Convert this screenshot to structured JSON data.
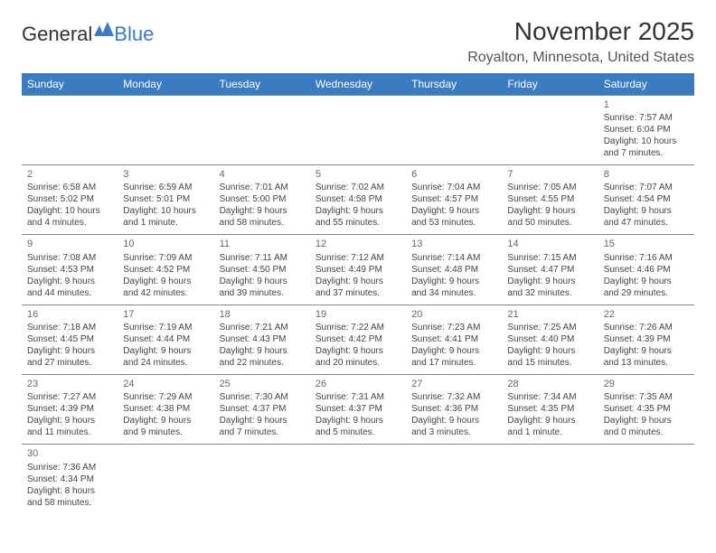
{
  "logo": {
    "text1": "General",
    "text2": "Blue",
    "icon_color": "#3b7bbf"
  },
  "title": "November 2025",
  "location": "Royalton, Minnesota, United States",
  "header_bg": "#3b7bbf",
  "header_fg": "#ffffff",
  "row_separator_color": "#3b7bbf",
  "day_separator_color": "#888888",
  "font_family": "Arial",
  "title_fontsize": 28,
  "location_fontsize": 16,
  "header_fontsize": 12,
  "body_fontsize": 10,
  "columns": [
    "Sunday",
    "Monday",
    "Tuesday",
    "Wednesday",
    "Thursday",
    "Friday",
    "Saturday"
  ],
  "weeks": [
    [
      null,
      null,
      null,
      null,
      null,
      null,
      {
        "n": "1",
        "sr": "Sunrise: 7:57 AM",
        "ss": "Sunset: 6:04 PM",
        "dl": "Daylight: 10 hours and 7 minutes."
      }
    ],
    [
      {
        "n": "2",
        "sr": "Sunrise: 6:58 AM",
        "ss": "Sunset: 5:02 PM",
        "dl": "Daylight: 10 hours and 4 minutes."
      },
      {
        "n": "3",
        "sr": "Sunrise: 6:59 AM",
        "ss": "Sunset: 5:01 PM",
        "dl": "Daylight: 10 hours and 1 minute."
      },
      {
        "n": "4",
        "sr": "Sunrise: 7:01 AM",
        "ss": "Sunset: 5:00 PM",
        "dl": "Daylight: 9 hours and 58 minutes."
      },
      {
        "n": "5",
        "sr": "Sunrise: 7:02 AM",
        "ss": "Sunset: 4:58 PM",
        "dl": "Daylight: 9 hours and 55 minutes."
      },
      {
        "n": "6",
        "sr": "Sunrise: 7:04 AM",
        "ss": "Sunset: 4:57 PM",
        "dl": "Daylight: 9 hours and 53 minutes."
      },
      {
        "n": "7",
        "sr": "Sunrise: 7:05 AM",
        "ss": "Sunset: 4:55 PM",
        "dl": "Daylight: 9 hours and 50 minutes."
      },
      {
        "n": "8",
        "sr": "Sunrise: 7:07 AM",
        "ss": "Sunset: 4:54 PM",
        "dl": "Daylight: 9 hours and 47 minutes."
      }
    ],
    [
      {
        "n": "9",
        "sr": "Sunrise: 7:08 AM",
        "ss": "Sunset: 4:53 PM",
        "dl": "Daylight: 9 hours and 44 minutes."
      },
      {
        "n": "10",
        "sr": "Sunrise: 7:09 AM",
        "ss": "Sunset: 4:52 PM",
        "dl": "Daylight: 9 hours and 42 minutes."
      },
      {
        "n": "11",
        "sr": "Sunrise: 7:11 AM",
        "ss": "Sunset: 4:50 PM",
        "dl": "Daylight: 9 hours and 39 minutes."
      },
      {
        "n": "12",
        "sr": "Sunrise: 7:12 AM",
        "ss": "Sunset: 4:49 PM",
        "dl": "Daylight: 9 hours and 37 minutes."
      },
      {
        "n": "13",
        "sr": "Sunrise: 7:14 AM",
        "ss": "Sunset: 4:48 PM",
        "dl": "Daylight: 9 hours and 34 minutes."
      },
      {
        "n": "14",
        "sr": "Sunrise: 7:15 AM",
        "ss": "Sunset: 4:47 PM",
        "dl": "Daylight: 9 hours and 32 minutes."
      },
      {
        "n": "15",
        "sr": "Sunrise: 7:16 AM",
        "ss": "Sunset: 4:46 PM",
        "dl": "Daylight: 9 hours and 29 minutes."
      }
    ],
    [
      {
        "n": "16",
        "sr": "Sunrise: 7:18 AM",
        "ss": "Sunset: 4:45 PM",
        "dl": "Daylight: 9 hours and 27 minutes."
      },
      {
        "n": "17",
        "sr": "Sunrise: 7:19 AM",
        "ss": "Sunset: 4:44 PM",
        "dl": "Daylight: 9 hours and 24 minutes."
      },
      {
        "n": "18",
        "sr": "Sunrise: 7:21 AM",
        "ss": "Sunset: 4:43 PM",
        "dl": "Daylight: 9 hours and 22 minutes."
      },
      {
        "n": "19",
        "sr": "Sunrise: 7:22 AM",
        "ss": "Sunset: 4:42 PM",
        "dl": "Daylight: 9 hours and 20 minutes."
      },
      {
        "n": "20",
        "sr": "Sunrise: 7:23 AM",
        "ss": "Sunset: 4:41 PM",
        "dl": "Daylight: 9 hours and 17 minutes."
      },
      {
        "n": "21",
        "sr": "Sunrise: 7:25 AM",
        "ss": "Sunset: 4:40 PM",
        "dl": "Daylight: 9 hours and 15 minutes."
      },
      {
        "n": "22",
        "sr": "Sunrise: 7:26 AM",
        "ss": "Sunset: 4:39 PM",
        "dl": "Daylight: 9 hours and 13 minutes."
      }
    ],
    [
      {
        "n": "23",
        "sr": "Sunrise: 7:27 AM",
        "ss": "Sunset: 4:39 PM",
        "dl": "Daylight: 9 hours and 11 minutes."
      },
      {
        "n": "24",
        "sr": "Sunrise: 7:29 AM",
        "ss": "Sunset: 4:38 PM",
        "dl": "Daylight: 9 hours and 9 minutes."
      },
      {
        "n": "25",
        "sr": "Sunrise: 7:30 AM",
        "ss": "Sunset: 4:37 PM",
        "dl": "Daylight: 9 hours and 7 minutes."
      },
      {
        "n": "26",
        "sr": "Sunrise: 7:31 AM",
        "ss": "Sunset: 4:37 PM",
        "dl": "Daylight: 9 hours and 5 minutes."
      },
      {
        "n": "27",
        "sr": "Sunrise: 7:32 AM",
        "ss": "Sunset: 4:36 PM",
        "dl": "Daylight: 9 hours and 3 minutes."
      },
      {
        "n": "28",
        "sr": "Sunrise: 7:34 AM",
        "ss": "Sunset: 4:35 PM",
        "dl": "Daylight: 9 hours and 1 minute."
      },
      {
        "n": "29",
        "sr": "Sunrise: 7:35 AM",
        "ss": "Sunset: 4:35 PM",
        "dl": "Daylight: 9 hours and 0 minutes."
      }
    ],
    [
      {
        "n": "30",
        "sr": "Sunrise: 7:36 AM",
        "ss": "Sunset: 4:34 PM",
        "dl": "Daylight: 8 hours and 58 minutes."
      },
      null,
      null,
      null,
      null,
      null,
      null
    ]
  ]
}
